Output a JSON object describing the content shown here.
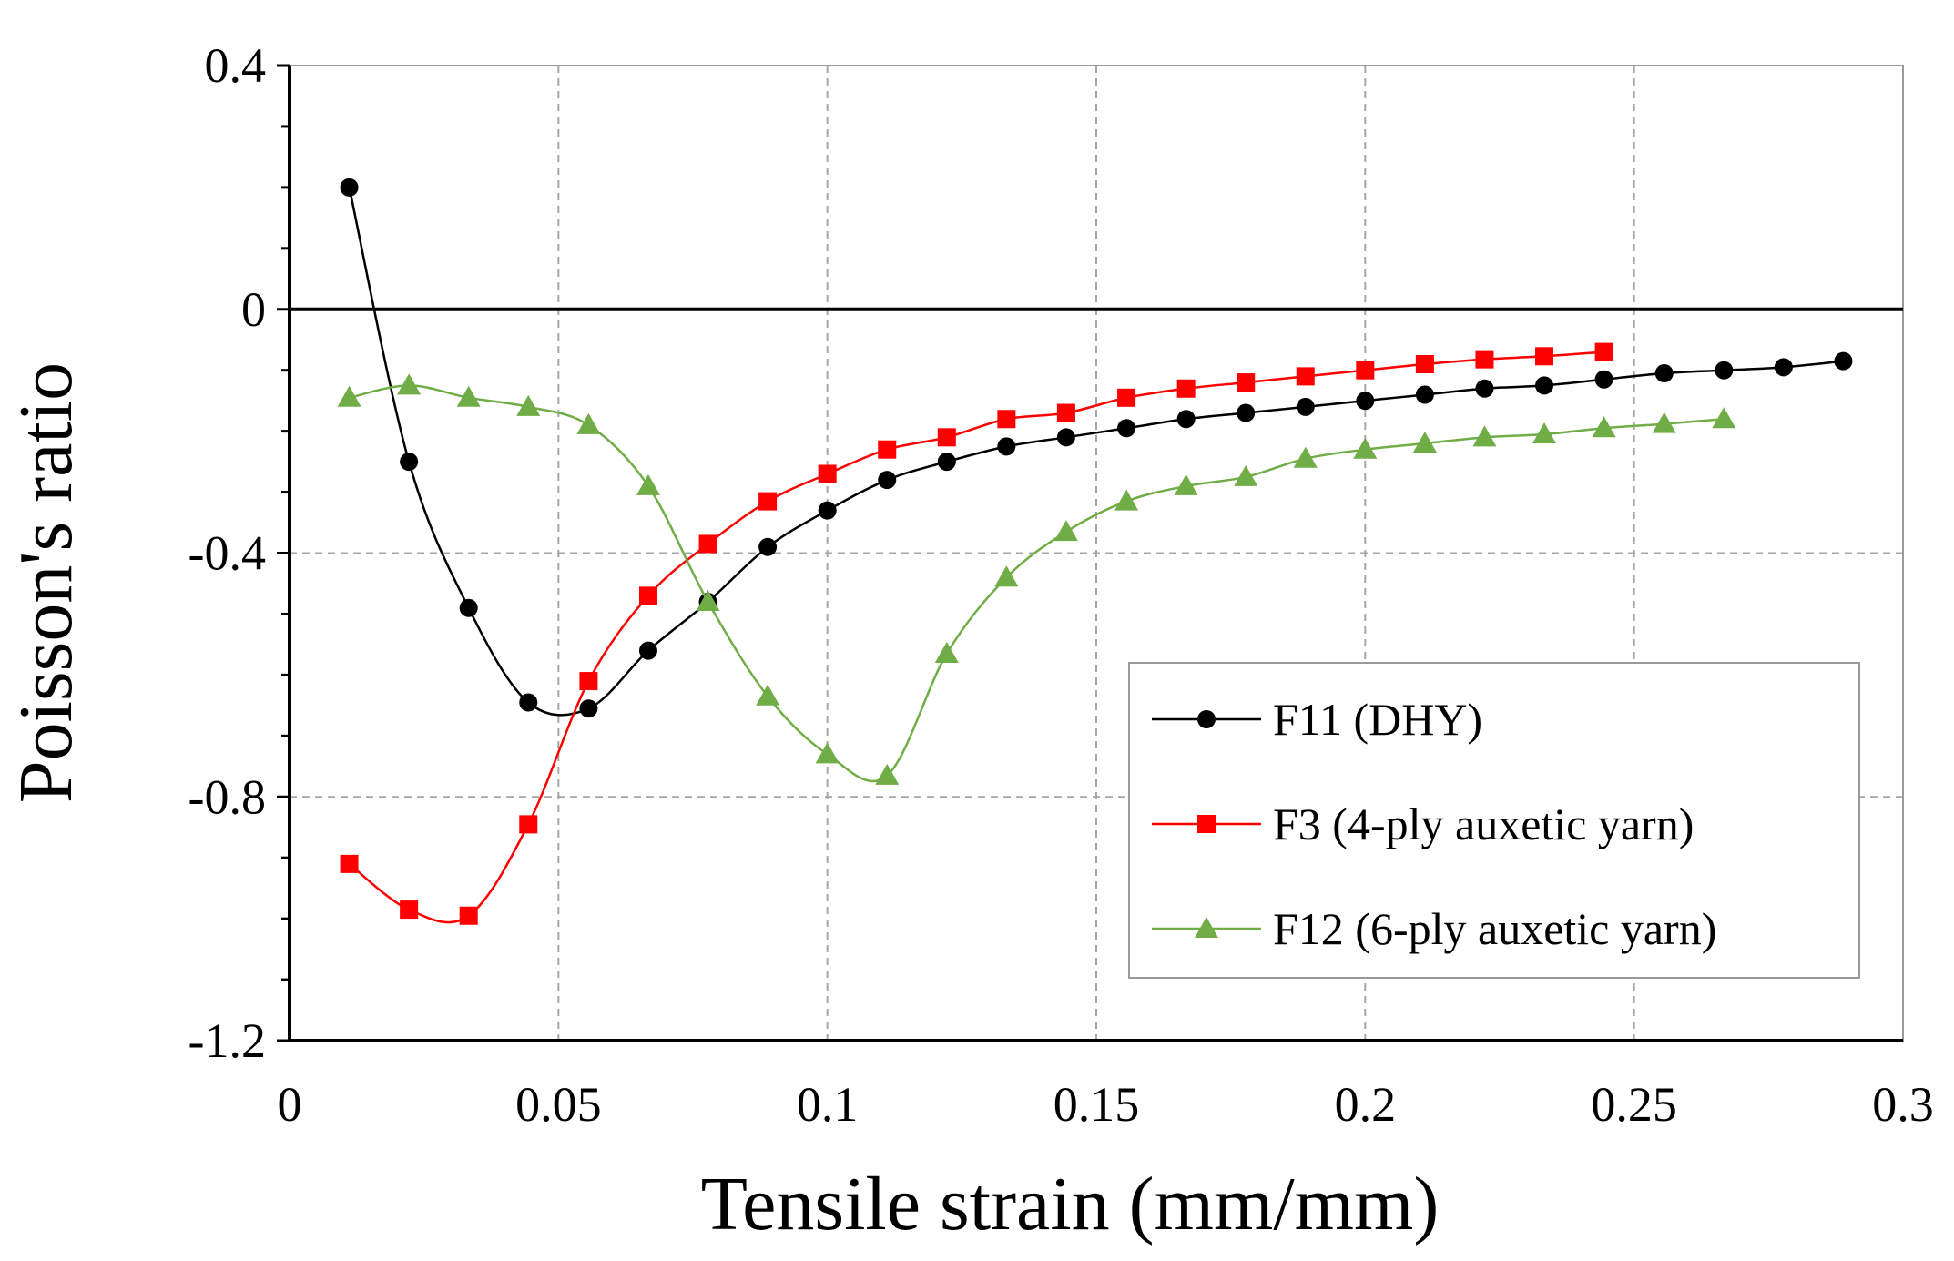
{
  "chart_data": {
    "type": "line",
    "title": "",
    "xlabel": "Tensile strain (mm/mm)",
    "ylabel": "Poisson's ratio",
    "xlim": [
      0,
      0.3
    ],
    "ylim": [
      -1.2,
      0.4
    ],
    "x_ticks": [
      0,
      0.05,
      0.1,
      0.15,
      0.2,
      0.25,
      0.3
    ],
    "x_tick_labels": [
      "0",
      "0.05",
      "0.1",
      "0.15",
      "0.2",
      "0.25",
      "0.3"
    ],
    "y_ticks": [
      0.4,
      0,
      -0.4,
      -0.8,
      -1.2
    ],
    "y_tick_labels": [
      "0.4",
      "0",
      "-0.4",
      "-0.8",
      "-1.2"
    ],
    "grid": true,
    "legend_position": "bottom-right",
    "series": [
      {
        "name": "F11 (DHY)",
        "color": "#000000",
        "marker": "circle",
        "x": [
          0.0111,
          0.0222,
          0.0333,
          0.0444,
          0.0556,
          0.0667,
          0.0778,
          0.0889,
          0.1,
          0.1111,
          0.1222,
          0.1333,
          0.1444,
          0.1556,
          0.1667,
          0.1778,
          0.1889,
          0.2,
          0.2111,
          0.2222,
          0.2333,
          0.2444,
          0.2556,
          0.2667,
          0.2778,
          0.2889
        ],
        "values": [
          0.2,
          -0.25,
          -0.49,
          -0.645,
          -0.655,
          -0.56,
          -0.48,
          -0.39,
          -0.33,
          -0.28,
          -0.25,
          -0.225,
          -0.21,
          -0.195,
          -0.18,
          -0.17,
          -0.16,
          -0.15,
          -0.14,
          -0.13,
          -0.125,
          -0.115,
          -0.105,
          -0.1,
          -0.095,
          -0.085
        ]
      },
      {
        "name": "F3 (4-ply auxetic yarn)",
        "color": "#ff0000",
        "marker": "square",
        "x": [
          0.0111,
          0.0222,
          0.0333,
          0.0444,
          0.0556,
          0.0667,
          0.0778,
          0.0889,
          0.1,
          0.1111,
          0.1222,
          0.1333,
          0.1444,
          0.1556,
          0.1667,
          0.1778,
          0.1889,
          0.2,
          0.2111,
          0.2222,
          0.2333,
          0.2444
        ],
        "values": [
          -0.91,
          -0.985,
          -0.995,
          -0.845,
          -0.61,
          -0.47,
          -0.385,
          -0.315,
          -0.27,
          -0.23,
          -0.21,
          -0.18,
          -0.17,
          -0.145,
          -0.13,
          -0.12,
          -0.11,
          -0.1,
          -0.09,
          -0.082,
          -0.077,
          -0.07
        ]
      },
      {
        "name": "F12 (6-ply auxetic yarn)",
        "color": "#70ad47",
        "marker": "triangle",
        "x": [
          0.0111,
          0.0222,
          0.0333,
          0.0444,
          0.0556,
          0.0667,
          0.0778,
          0.0889,
          0.1,
          0.1111,
          0.1222,
          0.1333,
          0.1444,
          0.1556,
          0.1667,
          0.1778,
          0.1889,
          0.2,
          0.2111,
          0.2222,
          0.2333,
          0.2444,
          0.2556,
          0.2667
        ],
        "values": [
          -0.145,
          -0.125,
          -0.145,
          -0.16,
          -0.19,
          -0.29,
          -0.48,
          -0.635,
          -0.73,
          -0.765,
          -0.565,
          -0.44,
          -0.365,
          -0.315,
          -0.29,
          -0.275,
          -0.245,
          -0.23,
          -0.22,
          -0.21,
          -0.205,
          -0.195,
          -0.188,
          -0.18
        ]
      }
    ]
  }
}
